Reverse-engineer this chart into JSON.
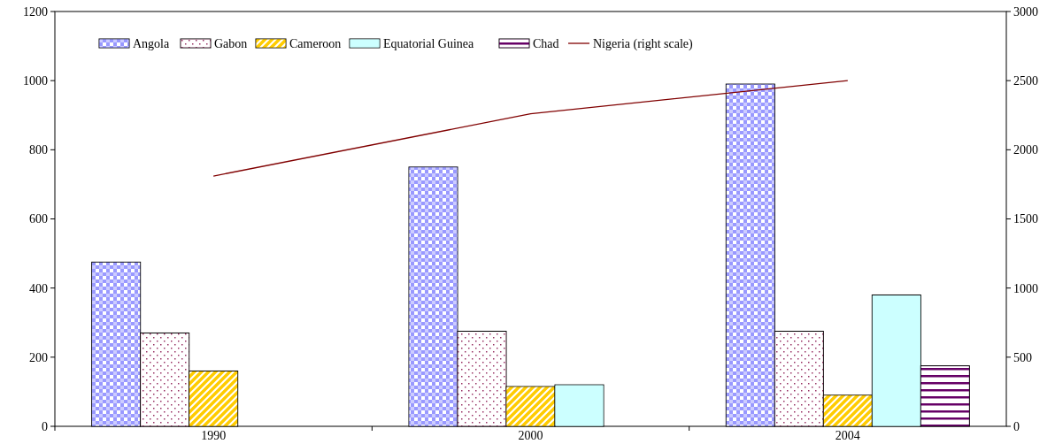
{
  "chart_data": {
    "type": "bar",
    "categories": [
      "1990",
      "2000",
      "2004"
    ],
    "series": [
      {
        "name": "Angola",
        "color": "#9999ff",
        "values": [
          475,
          750,
          990
        ]
      },
      {
        "name": "Gabon",
        "color": "#993366",
        "values": [
          270,
          275,
          275
        ]
      },
      {
        "name": "Cameroon",
        "color": "#ffcc00",
        "values": [
          160,
          115,
          90
        ]
      },
      {
        "name": "Equatorial Guinea",
        "color": "#ccffff",
        "values": [
          null,
          120,
          380
        ]
      },
      {
        "name": "Chad",
        "color": "#660066",
        "values": [
          null,
          null,
          175
        ]
      },
      {
        "name": "Nigeria (right scale)",
        "type": "line",
        "axis": "y2",
        "color": "#800000",
        "values": [
          1810,
          2260,
          2500
        ]
      }
    ],
    "ylim": [
      0,
      1200
    ],
    "yticks": [
      0,
      200,
      400,
      600,
      800,
      1000,
      1200
    ],
    "y2lim": [
      0,
      3000
    ],
    "y2ticks": [
      0,
      500,
      1000,
      1500,
      2000,
      2500,
      3000
    ],
    "legend": "top",
    "grid": false,
    "marker": "none",
    "line_style": "solid"
  }
}
